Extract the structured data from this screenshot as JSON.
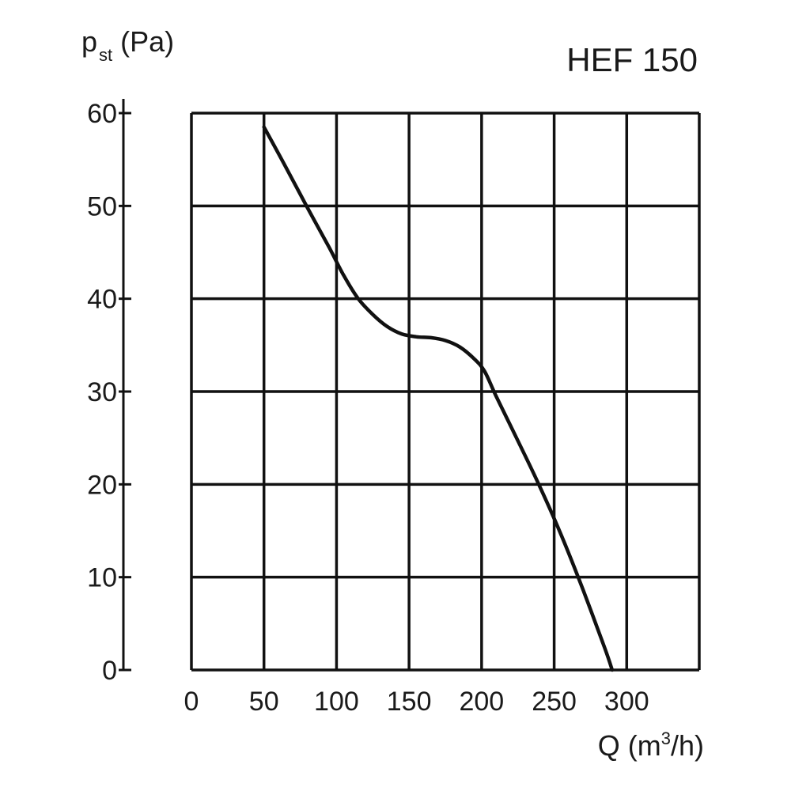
{
  "chart_data": {
    "type": "line",
    "title": "HEF 150",
    "ylabel": {
      "main": "p",
      "sub": "st",
      "unit": " (Pa)"
    },
    "xlabel": {
      "main": "Q (m",
      "sup": "3",
      "unit": "/h)"
    },
    "xlim": [
      0,
      350
    ],
    "ylim": [
      0,
      60
    ],
    "x_ticks": [
      0,
      50,
      100,
      150,
      200,
      250,
      300
    ],
    "x_tick_labels": [
      "0",
      "50",
      "100",
      "150",
      "200",
      "250",
      "300"
    ],
    "y_ticks": [
      0,
      10,
      20,
      30,
      40,
      50,
      60
    ],
    "y_tick_labels": [
      "0",
      "10",
      "20",
      "30",
      "40",
      "50",
      "60"
    ],
    "grid": true,
    "series": [
      {
        "x": [
          50,
          65,
          80,
          95,
          105,
          115,
          125,
          135,
          145,
          155,
          165,
          175,
          185,
          195,
          202,
          210,
          225,
          240,
          255,
          270,
          285,
          290
        ],
        "y": [
          58.5,
          54.2,
          49.8,
          45.5,
          42.5,
          40.0,
          38.3,
          37.0,
          36.2,
          35.9,
          35.8,
          35.5,
          34.8,
          33.5,
          32.2,
          29.5,
          24.7,
          19.8,
          14.5,
          8.6,
          2.3,
          0
        ]
      }
    ]
  }
}
